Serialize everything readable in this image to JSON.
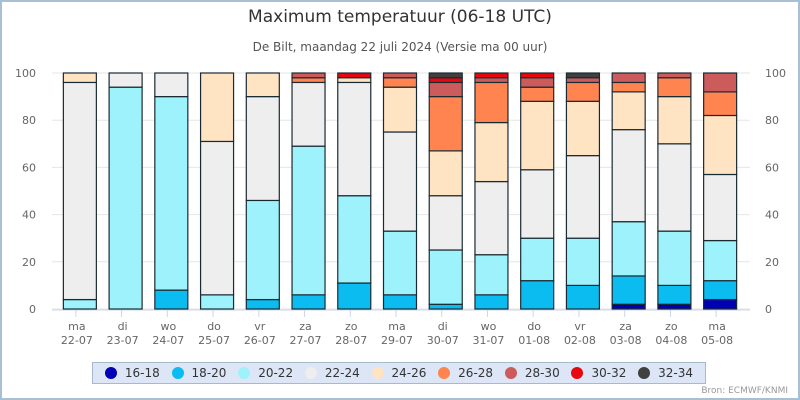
{
  "chart_data": {
    "type": "bar",
    "stacked": true,
    "title": "Maximum temperatuur (06-18 UTC)",
    "subtitle": "De Bilt, maandag 22 juli 2024 (Versie ma 00 uur)",
    "xlabel": "",
    "ylabel": "",
    "ylim": [
      0,
      100
    ],
    "yticks": [
      0,
      20,
      40,
      60,
      80,
      100
    ],
    "grid": true,
    "legend_position": "bottom",
    "categories": [
      {
        "day": "ma",
        "date": "22-07"
      },
      {
        "day": "di",
        "date": "23-07"
      },
      {
        "day": "wo",
        "date": "24-07"
      },
      {
        "day": "do",
        "date": "25-07"
      },
      {
        "day": "vr",
        "date": "26-07"
      },
      {
        "day": "za",
        "date": "27-07"
      },
      {
        "day": "zo",
        "date": "28-07"
      },
      {
        "day": "ma",
        "date": "29-07"
      },
      {
        "day": "di",
        "date": "30-07"
      },
      {
        "day": "wo",
        "date": "31-07"
      },
      {
        "day": "do",
        "date": "01-08"
      },
      {
        "day": "vr",
        "date": "02-08"
      },
      {
        "day": "za",
        "date": "03-08"
      },
      {
        "day": "zo",
        "date": "04-08"
      },
      {
        "day": "ma",
        "date": "05-08"
      }
    ],
    "series": [
      {
        "name": "16-18",
        "color": "#0000b4",
        "values": [
          0,
          0,
          0,
          0,
          0,
          0,
          0,
          0,
          0,
          0,
          0,
          0,
          2,
          2,
          4
        ]
      },
      {
        "name": "18-20",
        "color": "#0bbcf0",
        "values": [
          0,
          0,
          8,
          0,
          4,
          6,
          11,
          6,
          2,
          6,
          12,
          10,
          12,
          8,
          8
        ]
      },
      {
        "name": "20-22",
        "color": "#9ef2fb",
        "values": [
          4,
          94,
          82,
          6,
          42,
          63,
          37,
          27,
          23,
          17,
          18,
          20,
          23,
          23,
          17
        ]
      },
      {
        "name": "22-24",
        "color": "#eeeeee",
        "values": [
          92,
          6,
          10,
          65,
          44,
          27,
          48,
          42,
          23,
          31,
          29,
          35,
          39,
          37,
          28
        ]
      },
      {
        "name": "24-26",
        "color": "#ffe4c4",
        "values": [
          4,
          0,
          0,
          29,
          10,
          0,
          2,
          19,
          19,
          25,
          29,
          23,
          16,
          20,
          25
        ]
      },
      {
        "name": "26-28",
        "color": "#ff8450",
        "values": [
          0,
          0,
          0,
          0,
          0,
          2,
          0,
          4,
          23,
          17,
          6,
          8,
          4,
          8,
          10
        ]
      },
      {
        "name": "28-30",
        "color": "#cc5c5c",
        "values": [
          0,
          0,
          0,
          0,
          0,
          2,
          0,
          2,
          6,
          2,
          4,
          2,
          4,
          2,
          8
        ]
      },
      {
        "name": "30-32",
        "color": "#e8060f",
        "values": [
          0,
          0,
          0,
          0,
          0,
          0,
          2,
          0,
          2,
          2,
          2,
          0,
          0,
          0,
          0
        ]
      },
      {
        "name": "32-34",
        "color": "#404040",
        "values": [
          0,
          0,
          0,
          0,
          0,
          0,
          0,
          0,
          2,
          0,
          0,
          2,
          0,
          0,
          0
        ]
      }
    ]
  },
  "source": "Bron: ECMWF/KNMI"
}
